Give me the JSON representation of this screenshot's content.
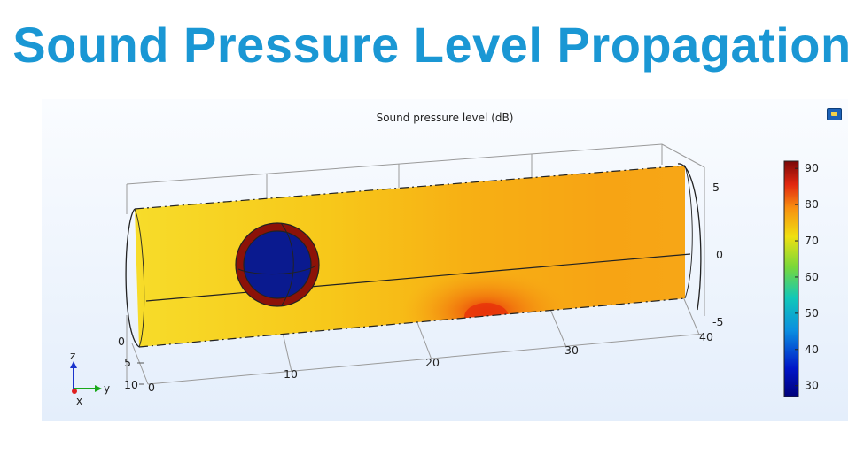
{
  "slide": {
    "title": "Sound Pressure Level Propagation"
  },
  "plot": {
    "title": "Sound pressure level (dB)",
    "toolbar": {
      "icon": "camera-icon"
    },
    "axes": {
      "y_ticks": [
        "0",
        "10",
        "20",
        "30",
        "40"
      ],
      "x_ticks": [
        "0",
        "5",
        "10"
      ],
      "z_ticks": [
        "5",
        "0",
        "-5"
      ]
    },
    "triad": {
      "z": "z",
      "y": "y",
      "x": "x"
    },
    "colorbar": {
      "ticks": [
        "90",
        "80",
        "70",
        "60",
        "50",
        "40",
        "30"
      ],
      "min": 27,
      "max": 92,
      "colormap": "rainbow"
    },
    "surface_colors": {
      "base": "#f6d21a",
      "mid": "#f8a814",
      "hotspot": "#e8300a",
      "sphere_core": "#0a1a8f",
      "sphere_shell": "#8c1208"
    }
  }
}
